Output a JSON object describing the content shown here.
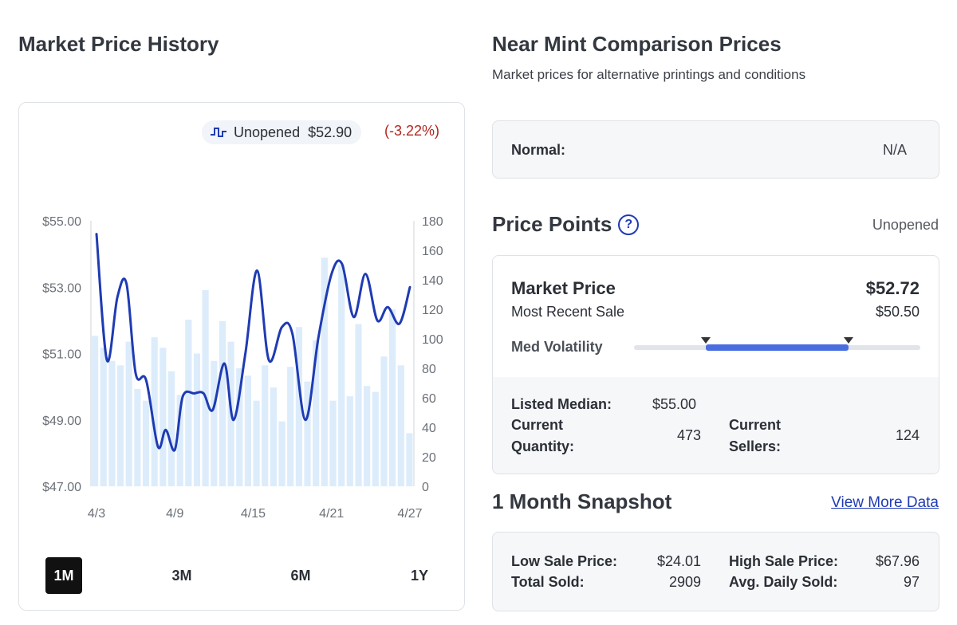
{
  "left": {
    "title": "Market Price History",
    "legend": {
      "label": "Unopened",
      "price": "$52.90",
      "change": "(-3.22%)"
    },
    "ranges": [
      "1M",
      "3M",
      "6M",
      "1Y"
    ],
    "active_range": "1M"
  },
  "chart_data": {
    "type": "line",
    "x_ticks": [
      "4/3",
      "4/9",
      "4/15",
      "4/21",
      "4/27"
    ],
    "y_left_ticks": [
      "$55.00",
      "$53.00",
      "$51.00",
      "$49.00",
      "$47.00"
    ],
    "y_right_ticks": [
      "180",
      "160",
      "140",
      "120",
      "100",
      "80",
      "60",
      "40",
      "20",
      "0"
    ],
    "ylim_price": [
      47,
      55
    ],
    "ylim_quantity": [
      0,
      180
    ],
    "bars_quantity": [
      102,
      94,
      85,
      82,
      98,
      66,
      58,
      101,
      94,
      78,
      62,
      113,
      90,
      133,
      85,
      112,
      98,
      80,
      75,
      58,
      82,
      67,
      44,
      81,
      108,
      71,
      99,
      155,
      58,
      150,
      61,
      110,
      68,
      64,
      88,
      120,
      82,
      36
    ],
    "price_series": [
      {
        "d": 0,
        "v": 54.6
      },
      {
        "d": 0.8,
        "v": 50.8
      },
      {
        "d": 1.6,
        "v": 52.7
      },
      {
        "d": 2.3,
        "v": 53.1
      },
      {
        "d": 3.0,
        "v": 50.4
      },
      {
        "d": 3.8,
        "v": 50.2
      },
      {
        "d": 4.7,
        "v": 48.2
      },
      {
        "d": 5.3,
        "v": 48.7
      },
      {
        "d": 6.0,
        "v": 48.1
      },
      {
        "d": 6.6,
        "v": 49.7
      },
      {
        "d": 7.5,
        "v": 49.8
      },
      {
        "d": 8.2,
        "v": 49.8
      },
      {
        "d": 8.9,
        "v": 49.3
      },
      {
        "d": 9.8,
        "v": 50.7
      },
      {
        "d": 10.5,
        "v": 49.0
      },
      {
        "d": 11.4,
        "v": 51.0
      },
      {
        "d": 12.3,
        "v": 53.5
      },
      {
        "d": 13.2,
        "v": 50.8
      },
      {
        "d": 14.2,
        "v": 51.8
      },
      {
        "d": 15.0,
        "v": 51.6
      },
      {
        "d": 16.0,
        "v": 49.0
      },
      {
        "d": 17.0,
        "v": 51.5
      },
      {
        "d": 18.0,
        "v": 53.4
      },
      {
        "d": 18.8,
        "v": 53.7
      },
      {
        "d": 19.7,
        "v": 52.1
      },
      {
        "d": 20.6,
        "v": 53.4
      },
      {
        "d": 21.5,
        "v": 52.0
      },
      {
        "d": 22.3,
        "v": 52.4
      },
      {
        "d": 23.2,
        "v": 51.9
      },
      {
        "d": 24.0,
        "v": 53.0
      }
    ],
    "x_tick_days": [
      0,
      6,
      12,
      18,
      24
    ],
    "x_total_days": 24
  },
  "right": {
    "title": "Near Mint Comparison Prices",
    "subtitle": "Market prices for alternative printings and conditions",
    "normal_label": "Normal:",
    "normal_value": "N/A",
    "price_points_title": "Price Points",
    "help_glyph": "?",
    "condition": "Unopened",
    "market_price_label": "Market Price",
    "market_price_value": "$52.72",
    "recent_sale_label": "Most Recent Sale",
    "recent_sale_value": "$50.50",
    "volatility_label": "Med Volatility",
    "volatility_range": [
      0.25,
      0.75
    ],
    "listed_median_label": "Listed Median:",
    "listed_median_value": "$55.00",
    "current_quantity_label_1": "Current",
    "current_quantity_label_2": "Quantity:",
    "current_quantity_value": "473",
    "current_sellers_label_1": "Current",
    "current_sellers_label_2": "Sellers:",
    "current_sellers_value": "124",
    "snapshot_title": "1 Month Snapshot",
    "snapshot_link": "View More Data",
    "low_sale_label": "Low Sale Price:",
    "low_sale_value": "$24.01",
    "high_sale_label": "High Sale Price:",
    "high_sale_value": "$67.96",
    "total_sold_label": "Total Sold:",
    "total_sold_value": "2909",
    "avg_daily_label": "Avg. Daily Sold:",
    "avg_daily_value": "97"
  },
  "colors": {
    "line": "#1f3bb3",
    "bars": "#dcecfb",
    "negative": "#b3261e",
    "link": "#1f3bb3",
    "volatility_fill": "#4a6ee0"
  }
}
